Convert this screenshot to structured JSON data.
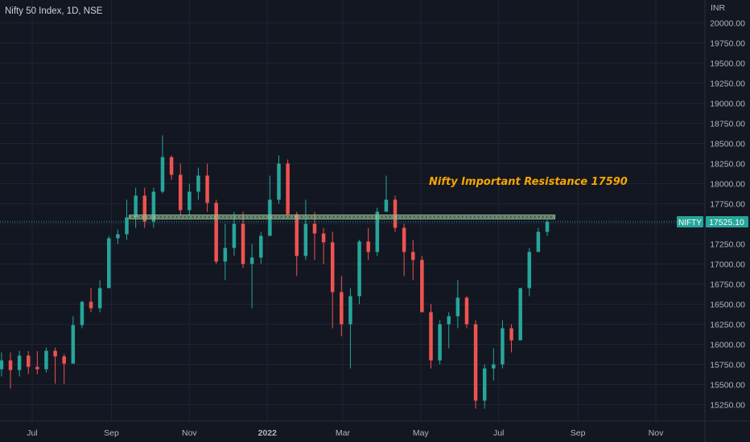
{
  "header": {
    "title": "Nifty 50 Index, 1D, NSE"
  },
  "colors": {
    "background": "#131722",
    "grid": "#1f2433",
    "up": "#26a69a",
    "down": "#ef5350",
    "resistance": "#8fbc8f",
    "annotation": "#f7a600",
    "last_price_label_bg": "#26a69a"
  },
  "chart_data": {
    "type": "candlestick",
    "title": "Nifty 50 Index, 1D, NSE",
    "currency": "INR",
    "y_ticks": [
      "20000.00",
      "19750.00",
      "19500.00",
      "19250.00",
      "19000.00",
      "18750.00",
      "18500.00",
      "18250.00",
      "18000.00",
      "17750.00",
      "17500.00",
      "17250.00",
      "17000.00",
      "16750.00",
      "16500.00",
      "16250.00",
      "16000.00",
      "15750.00",
      "15500.00",
      "15250.00"
    ],
    "ylim": [
      15150,
      20150
    ],
    "x_ticks": [
      "Jul",
      "Sep",
      "Nov",
      "2022",
      "Mar",
      "May",
      "Jul",
      "Sep",
      "Nov"
    ],
    "xlim": [
      "2021-06-03",
      "2022-11-28"
    ],
    "resistance": {
      "value": 17590,
      "label": "Nifty Important Resistance 17590"
    },
    "last_price": {
      "symbol": "NIFTY",
      "value": "17525.10"
    },
    "ohlc_weekly_approx": [
      [
        "2021-06-07",
        15690,
        15900,
        15600,
        15800
      ],
      [
        "2021-06-14",
        15800,
        15900,
        15450,
        15680
      ],
      [
        "2021-06-21",
        15680,
        15920,
        15600,
        15860
      ],
      [
        "2021-06-28",
        15860,
        15915,
        15630,
        15720
      ],
      [
        "2021-07-05",
        15720,
        15915,
        15630,
        15690
      ],
      [
        "2021-07-12",
        15690,
        15960,
        15650,
        15920
      ],
      [
        "2021-07-19",
        15920,
        15960,
        15510,
        15850
      ],
      [
        "2021-07-26",
        15850,
        15880,
        15510,
        15760
      ],
      [
        "2021-08-02",
        15760,
        16350,
        15760,
        16240
      ],
      [
        "2021-08-09",
        16240,
        16540,
        16200,
        16530
      ],
      [
        "2021-08-16",
        16530,
        16700,
        16400,
        16450
      ],
      [
        "2021-08-23",
        16450,
        16800,
        16400,
        16700
      ],
      [
        "2021-08-30",
        16700,
        17350,
        16700,
        17320
      ],
      [
        "2021-09-06",
        17320,
        17430,
        17250,
        17370
      ],
      [
        "2021-09-13",
        17370,
        17800,
        17300,
        17580
      ],
      [
        "2021-09-20",
        17580,
        17950,
        17450,
        17850
      ],
      [
        "2021-09-27",
        17850,
        17950,
        17450,
        17530
      ],
      [
        "2021-10-04",
        17530,
        17950,
        17450,
        17900
      ],
      [
        "2021-10-11",
        17900,
        18600,
        17880,
        18330
      ],
      [
        "2021-10-18",
        18330,
        18350,
        18050,
        18110
      ],
      [
        "2021-10-25",
        18110,
        18250,
        17600,
        17670
      ],
      [
        "2021-11-01",
        17670,
        18000,
        17600,
        17900
      ],
      [
        "2021-11-08",
        17900,
        18200,
        17800,
        18100
      ],
      [
        "2021-11-15",
        18100,
        18250,
        17650,
        17760
      ],
      [
        "2021-11-22",
        17760,
        17800,
        17000,
        17030
      ],
      [
        "2021-11-29",
        17030,
        17500,
        16800,
        17200
      ],
      [
        "2021-12-06",
        17200,
        17650,
        17100,
        17500
      ],
      [
        "2021-12-13",
        17500,
        17650,
        16950,
        17000
      ],
      [
        "2021-12-20",
        17000,
        17250,
        16450,
        17080
      ],
      [
        "2021-12-27",
        17080,
        17400,
        17000,
        17350
      ],
      [
        "2022-01-03",
        17350,
        18100,
        17350,
        17800
      ],
      [
        "2022-01-10",
        17800,
        18350,
        17750,
        18250
      ],
      [
        "2022-01-17",
        18250,
        18300,
        17600,
        17620
      ],
      [
        "2022-01-24",
        17620,
        17650,
        16850,
        17100
      ],
      [
        "2022-01-31",
        17100,
        17800,
        17050,
        17500
      ],
      [
        "2022-02-07",
        17500,
        17650,
        17050,
        17380
      ],
      [
        "2022-02-14",
        17380,
        17450,
        17000,
        17270
      ],
      [
        "2022-02-21",
        17270,
        17400,
        16200,
        16650
      ],
      [
        "2022-02-28",
        16650,
        16850,
        16100,
        16250
      ],
      [
        "2022-03-07",
        16250,
        16700,
        15700,
        16600
      ],
      [
        "2022-03-14",
        16600,
        17300,
        16500,
        17280
      ],
      [
        "2022-03-21",
        17280,
        17450,
        17050,
        17150
      ],
      [
        "2022-03-28",
        17150,
        17700,
        17100,
        17650
      ],
      [
        "2022-04-04",
        17650,
        18100,
        17700,
        17800
      ],
      [
        "2022-04-11",
        17800,
        17850,
        17400,
        17450
      ],
      [
        "2022-04-18",
        17450,
        17500,
        16850,
        17150
      ],
      [
        "2022-04-25",
        17150,
        17300,
        16800,
        17050
      ],
      [
        "2022-05-02",
        17050,
        17100,
        16400,
        16400
      ],
      [
        "2022-05-09",
        16400,
        16500,
        15700,
        15800
      ],
      [
        "2022-05-16",
        15800,
        16300,
        15750,
        16250
      ],
      [
        "2022-05-23",
        16250,
        16400,
        15950,
        16350
      ],
      [
        "2022-05-30",
        16350,
        16800,
        16200,
        16580
      ],
      [
        "2022-06-06",
        16580,
        16600,
        16200,
        16250
      ],
      [
        "2022-06-13",
        16250,
        16300,
        15200,
        15300
      ],
      [
        "2022-06-20",
        15300,
        15750,
        15200,
        15700
      ],
      [
        "2022-06-27",
        15700,
        15950,
        15550,
        15750
      ],
      [
        "2022-07-04",
        15750,
        16300,
        15700,
        16200
      ],
      [
        "2022-07-11",
        16200,
        16250,
        15900,
        16050
      ],
      [
        "2022-07-18",
        16050,
        16700,
        16050,
        16700
      ],
      [
        "2022-07-25",
        16700,
        17200,
        16600,
        17150
      ],
      [
        "2022-08-01",
        17150,
        17450,
        17150,
        17400
      ],
      [
        "2022-08-08",
        17400,
        17550,
        17350,
        17525
      ]
    ]
  }
}
